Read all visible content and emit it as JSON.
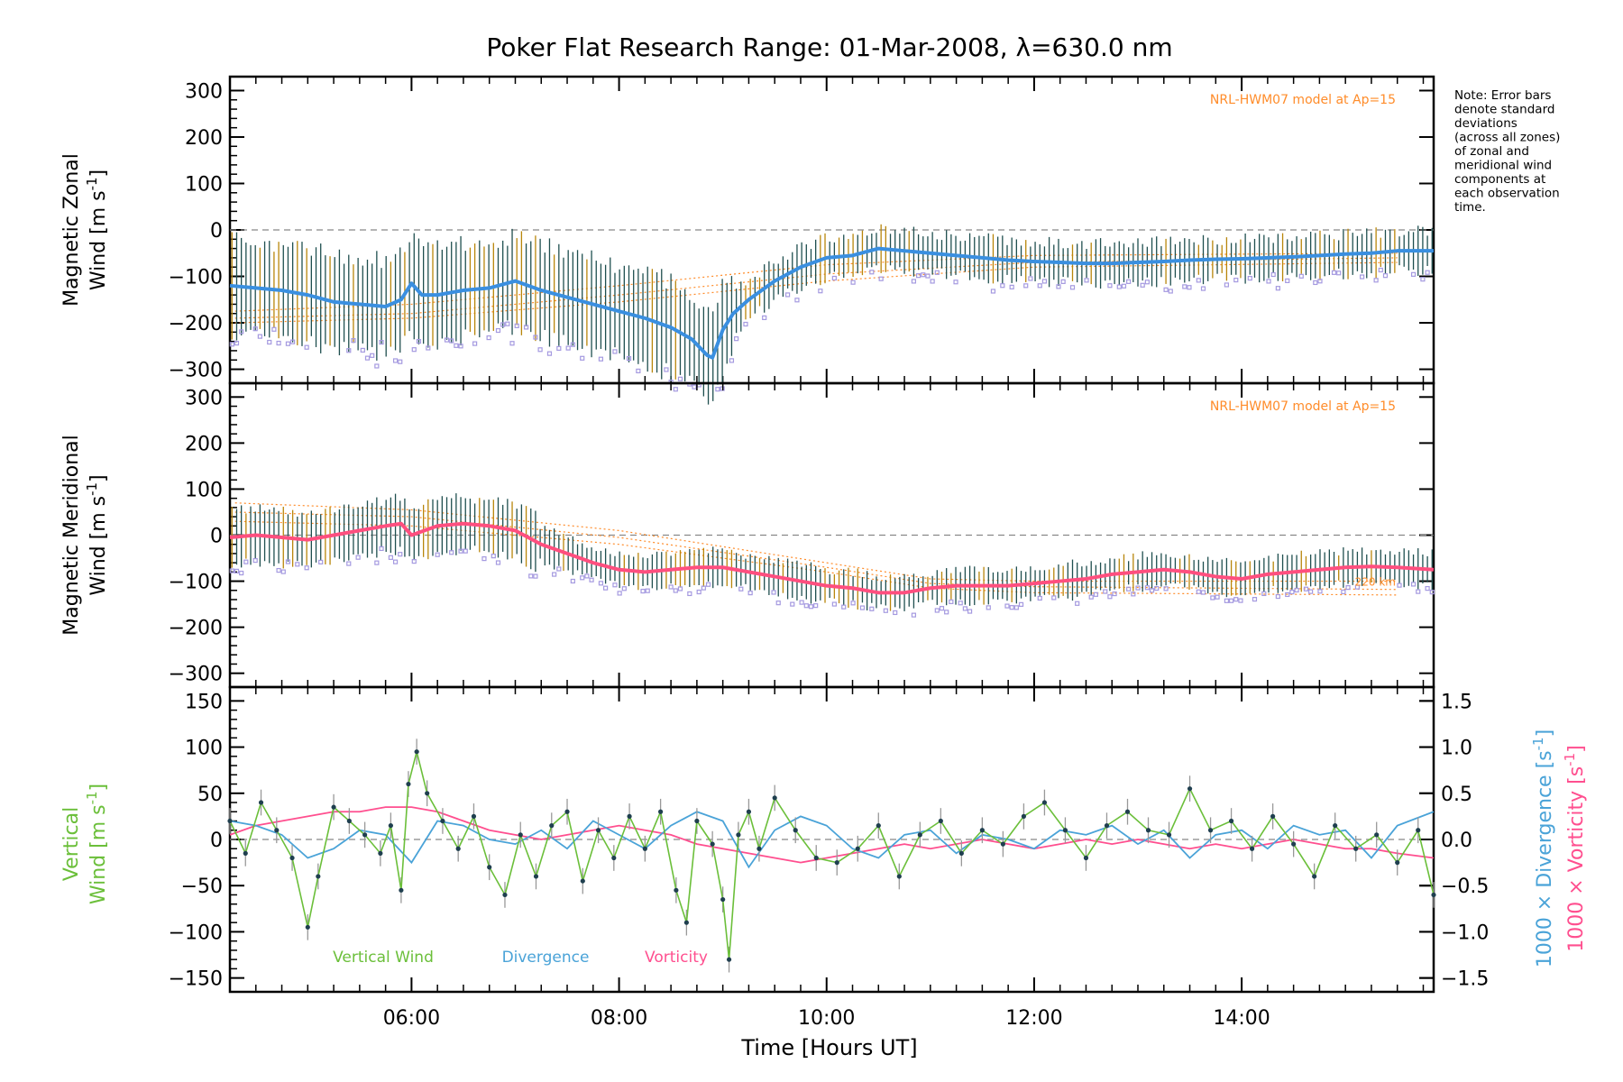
{
  "title": "Poker Flat Research Range: 01-Mar-2008, λ=630.0 nm",
  "note": [
    "Note: Error bars",
    "denote standard",
    "deviations",
    "(across all zones)",
    "of zonal and",
    "meridional wind",
    "components at",
    "each observation",
    "time."
  ],
  "xaxis": {
    "label": "Time [Hours UT]",
    "ticks": [
      6,
      8,
      10,
      12,
      14
    ],
    "tick_labels": [
      "06:00",
      "08:00",
      "10:00",
      "12:00",
      "14:00"
    ],
    "range_hours": [
      4.25,
      15.85
    ]
  },
  "colors": {
    "zonal_mean": "#3a8fe0",
    "meridional_mean": "#ff4f7f",
    "error_bar": "#1f4f4f",
    "error_bar_alt": "#b8860b",
    "zone_scatter": "#a59ae0",
    "model": "#ff8c2a",
    "vertical_wind": "#6bbf3a",
    "divergence": "#4aa3d8",
    "vorticity": "#ff4f8f",
    "zero_line": "#888888"
  },
  "chart_data": [
    {
      "type": "line",
      "panel": "zonal",
      "ylabel_line1": "Magnetic Zonal",
      "ylabel_line2": "Wind [m s",
      "ylabel_unit_sup": "-1",
      "ylabel_unit_close": "]",
      "ylim": [
        -330,
        330
      ],
      "yticks": [
        300,
        200,
        100,
        0,
        -100,
        -200,
        -300
      ],
      "model_label": "NRL-HWM07 model at Ap=15",
      "zero_line": true,
      "series": [
        {
          "x": [
            4.25,
            4.5,
            4.75,
            5.0,
            5.25,
            5.5,
            5.75,
            5.9,
            6.0,
            6.1,
            6.25,
            6.5,
            6.75,
            7.0,
            7.25,
            7.5,
            7.75,
            8.0,
            8.25,
            8.5,
            8.7,
            8.85,
            8.9,
            9.0,
            9.1,
            9.25,
            9.5,
            9.75,
            10.0,
            10.25,
            10.5,
            10.75,
            11.0,
            11.25,
            11.5,
            11.75,
            12.0,
            12.25,
            12.5,
            12.75,
            13.0,
            13.25,
            13.5,
            13.75,
            14.0,
            14.25,
            14.5,
            14.75,
            15.0,
            15.25,
            15.5,
            15.85
          ],
          "y": [
            -120,
            -125,
            -130,
            -140,
            -155,
            -160,
            -165,
            -150,
            -115,
            -140,
            -140,
            -130,
            -125,
            -110,
            -130,
            -145,
            -160,
            -175,
            -190,
            -210,
            -235,
            -270,
            -275,
            -215,
            -180,
            -150,
            -110,
            -80,
            -60,
            -55,
            -40,
            -45,
            -50,
            -55,
            -60,
            -65,
            -68,
            -70,
            -72,
            -72,
            -70,
            -68,
            -65,
            -63,
            -62,
            -60,
            -58,
            -55,
            -52,
            -50,
            -45,
            -45
          ]
        }
      ],
      "model_curves": [
        {
          "x": [
            4.3,
            6,
            8,
            10,
            12,
            15.5
          ],
          "y": [
            -175,
            -160,
            -120,
            -75,
            -55,
            -50
          ]
        },
        {
          "x": [
            4.3,
            6,
            8,
            10,
            12,
            15.5
          ],
          "y": [
            -190,
            -180,
            -140,
            -95,
            -70,
            -60
          ]
        },
        {
          "x": [
            4.3,
            6,
            8,
            10,
            12,
            15.5
          ],
          "y": [
            -200,
            -190,
            -155,
            -110,
            -80,
            -70
          ]
        }
      ]
    },
    {
      "type": "line",
      "panel": "meridional",
      "ylabel_line1": "Magnetic Meridional",
      "ylabel_line2": "Wind [m s",
      "ylabel_unit_sup": "-1",
      "ylabel_unit_close": "]",
      "ylim": [
        -330,
        330
      ],
      "yticks": [
        300,
        200,
        100,
        0,
        -100,
        -200,
        -300
      ],
      "model_label": "NRL-HWM07 model at Ap=15",
      "model_end_label": "220 km",
      "zero_line": true,
      "series": [
        {
          "x": [
            4.25,
            4.5,
            4.75,
            5.0,
            5.25,
            5.5,
            5.75,
            5.9,
            6.0,
            6.25,
            6.5,
            6.75,
            7.0,
            7.25,
            7.5,
            7.75,
            8.0,
            8.25,
            8.5,
            8.75,
            9.0,
            9.25,
            9.5,
            9.75,
            10.0,
            10.25,
            10.5,
            10.75,
            11.0,
            11.25,
            11.5,
            11.75,
            12.0,
            12.25,
            12.5,
            12.75,
            13.0,
            13.25,
            13.5,
            13.75,
            14.0,
            14.25,
            14.5,
            14.75,
            15.0,
            15.25,
            15.5,
            15.85
          ],
          "y": [
            -5,
            0,
            -5,
            -10,
            0,
            10,
            20,
            25,
            0,
            20,
            25,
            20,
            10,
            -20,
            -40,
            -60,
            -75,
            -80,
            -75,
            -70,
            -70,
            -80,
            -90,
            -100,
            -110,
            -115,
            -125,
            -125,
            -115,
            -110,
            -110,
            -110,
            -105,
            -100,
            -95,
            -85,
            -80,
            -75,
            -80,
            -90,
            -95,
            -85,
            -80,
            -75,
            -70,
            -68,
            -70,
            -75
          ]
        }
      ],
      "model_curves": [
        {
          "x": [
            4.3,
            6,
            8,
            10,
            11,
            12,
            15.5
          ],
          "y": [
            70,
            55,
            10,
            -60,
            -95,
            -100,
            -100
          ]
        },
        {
          "x": [
            4.3,
            6,
            8,
            10,
            11,
            12,
            15.5
          ],
          "y": [
            50,
            40,
            -5,
            -70,
            -105,
            -112,
            -118
          ]
        },
        {
          "x": [
            4.3,
            6,
            8,
            10,
            11,
            12,
            15.5
          ],
          "y": [
            30,
            20,
            -20,
            -80,
            -115,
            -125,
            -130
          ]
        }
      ]
    },
    {
      "type": "line",
      "panel": "vertical",
      "ylabel_line1": "Vertical",
      "ylabel_line2": "Wind [m s",
      "ylabel_unit_sup": "-1",
      "ylabel_unit_close": "]",
      "ylim": [
        -165,
        165
      ],
      "yticks": [
        150,
        100,
        50,
        0,
        -50,
        -100,
        -150
      ],
      "y2lim": [
        -1.65,
        1.65
      ],
      "y2ticks": [
        1.5,
        1.0,
        0.5,
        0.0,
        -0.5,
        -1.0,
        -1.5
      ],
      "y2tick_labels": [
        "1.5",
        "1.0",
        "0.5",
        "0.0",
        "−0.5",
        "−1.0",
        "−1.5"
      ],
      "y2label_div": "1000 × Divergence [s",
      "y2label_vort": "1000 × Vorticity [s",
      "y2label_sup": "-1",
      "y2label_close": "]",
      "legend": [
        "Vertical Wind",
        "Divergence",
        "Vorticity"
      ],
      "zero_line": true,
      "series": [
        {
          "name": "Vertical Wind",
          "x": [
            4.25,
            4.4,
            4.55,
            4.7,
            4.85,
            5.0,
            5.1,
            5.25,
            5.4,
            5.55,
            5.7,
            5.8,
            5.9,
            5.97,
            6.05,
            6.15,
            6.3,
            6.45,
            6.6,
            6.75,
            6.9,
            7.05,
            7.2,
            7.35,
            7.5,
            7.65,
            7.8,
            7.95,
            8.1,
            8.25,
            8.4,
            8.55,
            8.65,
            8.75,
            8.9,
            9.0,
            9.06,
            9.15,
            9.25,
            9.35,
            9.5,
            9.7,
            9.9,
            10.1,
            10.3,
            10.5,
            10.7,
            10.9,
            11.1,
            11.3,
            11.5,
            11.7,
            11.9,
            12.1,
            12.3,
            12.5,
            12.7,
            12.9,
            13.1,
            13.3,
            13.5,
            13.7,
            13.9,
            14.1,
            14.3,
            14.5,
            14.7,
            14.9,
            15.1,
            15.3,
            15.5,
            15.7,
            15.85
          ],
          "y": [
            20,
            -15,
            40,
            10,
            -20,
            -95,
            -40,
            35,
            20,
            5,
            -15,
            15,
            -55,
            60,
            95,
            50,
            20,
            -10,
            25,
            -30,
            -60,
            5,
            -40,
            15,
            30,
            -45,
            10,
            -20,
            25,
            -10,
            30,
            -55,
            -90,
            20,
            -5,
            -65,
            -130,
            5,
            30,
            -10,
            45,
            10,
            -20,
            -25,
            -10,
            15,
            -40,
            5,
            20,
            -15,
            10,
            -5,
            25,
            40,
            10,
            -20,
            15,
            30,
            10,
            5,
            55,
            10,
            20,
            -10,
            25,
            -5,
            -40,
            15,
            -10,
            5,
            -25,
            10,
            -60
          ]
        },
        {
          "name": "Divergence",
          "x": [
            4.25,
            4.5,
            4.75,
            5.0,
            5.25,
            5.5,
            5.75,
            6.0,
            6.25,
            6.5,
            6.75,
            7.0,
            7.25,
            7.5,
            7.75,
            8.0,
            8.25,
            8.5,
            8.75,
            9.0,
            9.25,
            9.5,
            9.75,
            10.0,
            10.25,
            10.5,
            10.75,
            11.0,
            11.25,
            11.5,
            11.75,
            12.0,
            12.25,
            12.5,
            12.75,
            13.0,
            13.25,
            13.5,
            13.75,
            14.0,
            14.25,
            14.5,
            14.75,
            15.0,
            15.25,
            15.5,
            15.85
          ],
          "y": [
            0.2,
            0.15,
            0.05,
            -0.2,
            -0.1,
            0.1,
            0.05,
            -0.25,
            0.2,
            0.15,
            0.0,
            -0.05,
            0.1,
            -0.1,
            0.2,
            0.05,
            -0.1,
            0.15,
            0.3,
            0.2,
            -0.3,
            0.1,
            0.25,
            0.15,
            -0.1,
            -0.2,
            0.05,
            0.1,
            -0.15,
            0.05,
            0.0,
            -0.1,
            0.1,
            0.05,
            0.15,
            -0.05,
            0.1,
            -0.2,
            0.05,
            0.1,
            -0.1,
            0.15,
            0.05,
            0.1,
            -0.2,
            0.15,
            0.3
          ]
        },
        {
          "name": "Vorticity",
          "x": [
            4.25,
            4.5,
            4.75,
            5.0,
            5.25,
            5.5,
            5.75,
            6.0,
            6.25,
            6.5,
            6.75,
            7.0,
            7.25,
            7.5,
            7.75,
            8.0,
            8.25,
            8.5,
            8.75,
            9.0,
            9.25,
            9.5,
            9.75,
            10.0,
            10.25,
            10.5,
            10.75,
            11.0,
            11.25,
            11.5,
            11.75,
            12.0,
            12.25,
            12.5,
            12.75,
            13.0,
            13.25,
            13.5,
            13.75,
            14.0,
            14.25,
            14.5,
            14.75,
            15.0,
            15.25,
            15.5,
            15.85
          ],
          "y": [
            0.05,
            0.15,
            0.2,
            0.25,
            0.3,
            0.3,
            0.35,
            0.35,
            0.3,
            0.2,
            0.1,
            0.05,
            0.0,
            0.05,
            0.1,
            0.15,
            0.1,
            0.05,
            -0.05,
            -0.1,
            -0.15,
            -0.2,
            -0.25,
            -0.2,
            -0.15,
            -0.1,
            -0.05,
            -0.1,
            -0.05,
            0.0,
            -0.05,
            -0.1,
            -0.05,
            0.0,
            -0.05,
            0.0,
            -0.05,
            -0.1,
            -0.05,
            -0.1,
            -0.05,
            0.0,
            -0.05,
            -0.1,
            -0.1,
            -0.15,
            -0.2
          ]
        }
      ]
    }
  ]
}
